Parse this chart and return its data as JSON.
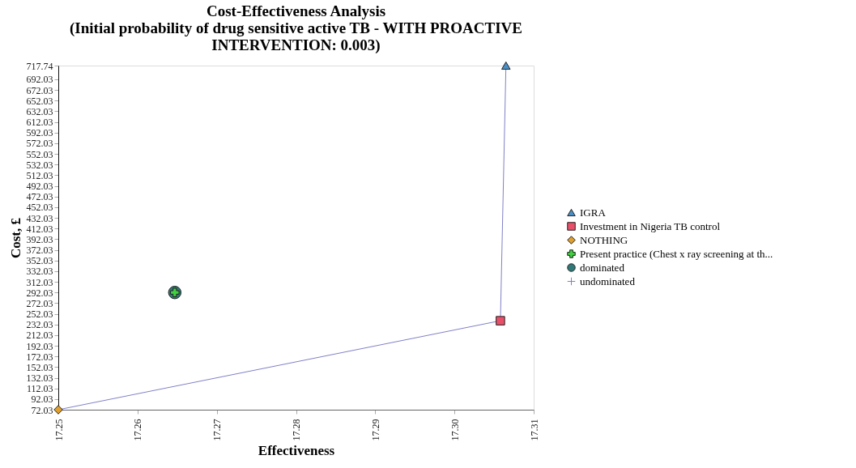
{
  "chart_data": {
    "type": "scatter",
    "title": [
      "Cost-Effectiveness Analysis",
      "(Initial probability of drug sensitive active TB - WITH PROACTIVE",
      "INTERVENTION: 0.003)"
    ],
    "xlabel": "Effectiveness",
    "ylabel": "Cost, £",
    "xlim": [
      17.25,
      17.31
    ],
    "xticks": [
      17.25,
      17.26,
      17.27,
      17.28,
      17.29,
      {
        "value": 17.3,
        "label": "17.30"
      },
      17.31
    ],
    "ylim": [
      72.03,
      717.74
    ],
    "yticks": [
      72.03,
      92.03,
      112.03,
      132.03,
      152.03,
      172.03,
      192.03,
      212.03,
      232.03,
      252.03,
      272.03,
      292.03,
      312.03,
      332.03,
      352.03,
      372.03,
      392.03,
      412.03,
      432.03,
      452.03,
      472.03,
      492.03,
      512.03,
      532.03,
      552.03,
      572.03,
      592.03,
      612.03,
      632.03,
      652.03,
      672.03,
      692.03,
      717.74
    ],
    "grid": false,
    "legend": "right",
    "series": [
      {
        "name": "IGRA",
        "color": "#4a90c8",
        "marker": "triangle",
        "x": [
          17.3065
        ],
        "values": [
          717.74
        ]
      },
      {
        "name": "Investment in Nigeria TB control",
        "color": "#e8506a",
        "marker": "square",
        "x": [
          17.3058
        ],
        "values": [
          239
        ]
      },
      {
        "name": "NOTHING",
        "color": "#e0a030",
        "marker": "diamond",
        "x": [
          17.25
        ],
        "values": [
          72.03
        ]
      },
      {
        "name": "Present practice (Chest x ray screening at th...",
        "color": "#40d040",
        "marker": "cross",
        "x": [
          17.2647
        ],
        "values": [
          292.03
        ]
      },
      {
        "name": "dominated",
        "color": "#2e7a78",
        "marker": "circle",
        "x": [
          17.2647
        ],
        "values": [
          292.03
        ]
      },
      {
        "type": "line",
        "name": "undominated",
        "color": "#8080c8",
        "marker": "cross",
        "x": [
          17.25,
          17.3058,
          17.3065
        ],
        "values": [
          72.03,
          239,
          717.74
        ]
      }
    ]
  }
}
